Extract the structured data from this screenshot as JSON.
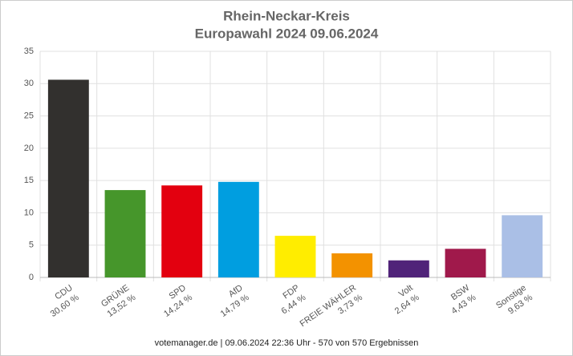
{
  "chart_data": {
    "type": "bar",
    "title": "Rhein-Neckar-Kreis",
    "subtitle": "Europawahl 2024 09.06.2024",
    "categories": [
      "CDU",
      "GRÜNE",
      "SPD",
      "AfD",
      "FDP",
      "FREIE WÄHLER",
      "Volt",
      "BSW",
      "Sonstige"
    ],
    "values": [
      30.6,
      13.52,
      14.24,
      14.79,
      6.44,
      3.73,
      2.64,
      4.43,
      9.63
    ],
    "value_labels": [
      "30,60 %",
      "13,52 %",
      "14,24 %",
      "14,79 %",
      "6,44 %",
      "3,73 %",
      "2,64 %",
      "4,43 %",
      "9,63 %"
    ],
    "colors": [
      "#32302e",
      "#46962b",
      "#e3000f",
      "#009ee0",
      "#ffed00",
      "#f39200",
      "#502379",
      "#a0194b",
      "#aabfe6"
    ],
    "ylim": [
      0,
      35
    ],
    "yticks": [
      0,
      5,
      10,
      15,
      20,
      25,
      30,
      35
    ],
    "grid": true,
    "footer": "votemanager.de | 09.06.2024 22:36 Uhr - 570 von 570 Ergebnissen"
  }
}
